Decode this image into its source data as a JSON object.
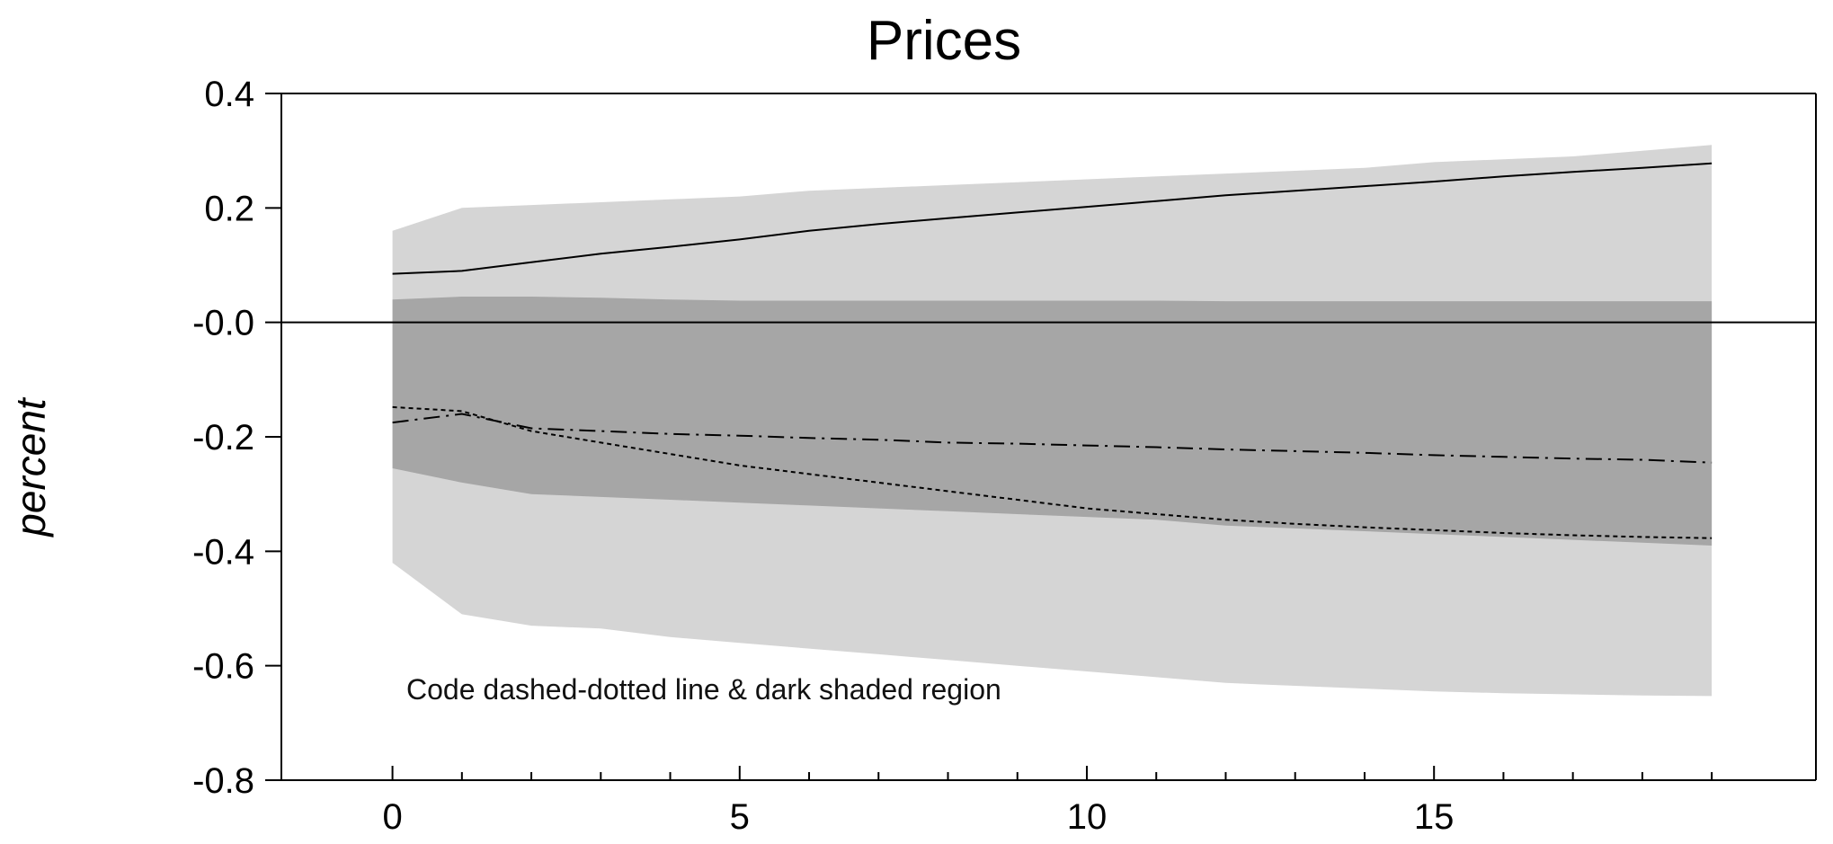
{
  "chart_data": {
    "type": "area",
    "title": "Prices",
    "xlabel": "",
    "ylabel": "percent",
    "xlim": [
      -1.6,
      20.5
    ],
    "ylim": [
      -0.8,
      0.4
    ],
    "x_ticks": [
      0,
      5,
      10,
      15
    ],
    "x_tick_labels": [
      "0",
      "5",
      "10",
      "15"
    ],
    "x_minor_ticks": [
      1,
      2,
      3,
      4,
      6,
      7,
      8,
      9,
      11,
      12,
      13,
      14,
      16,
      17,
      18,
      19
    ],
    "y_ticks": [
      0.4,
      0.2,
      0.0,
      -0.2,
      -0.4,
      -0.6,
      -0.8
    ],
    "y_tick_labels": [
      "0.4",
      "0.2",
      "-0.0",
      "-0.2",
      "-0.4",
      "-0.6",
      "-0.8"
    ],
    "zero_line": true,
    "annotation": "Code dashed-dotted line & dark shaded region",
    "x": [
      0,
      1,
      2,
      3,
      4,
      5,
      6,
      7,
      8,
      9,
      10,
      11,
      12,
      13,
      14,
      15,
      16,
      17,
      18,
      19
    ],
    "bands": [
      {
        "shade": "light",
        "color": "#d5d5d5",
        "lower": [
          -0.42,
          -0.51,
          -0.53,
          -0.535,
          -0.55,
          -0.56,
          -0.57,
          -0.58,
          -0.59,
          -0.6,
          -0.61,
          -0.62,
          -0.63,
          -0.635,
          -0.64,
          -0.645,
          -0.648,
          -0.65,
          -0.652,
          -0.653
        ],
        "upper": [
          0.16,
          0.2,
          0.205,
          0.21,
          0.215,
          0.22,
          0.23,
          0.235,
          0.24,
          0.245,
          0.25,
          0.255,
          0.26,
          0.265,
          0.27,
          0.28,
          0.285,
          0.29,
          0.3,
          0.31
        ]
      },
      {
        "shade": "dark",
        "color": "#a6a6a6",
        "lower": [
          -0.255,
          -0.28,
          -0.3,
          -0.305,
          -0.31,
          -0.315,
          -0.32,
          -0.325,
          -0.33,
          -0.335,
          -0.34,
          -0.345,
          -0.355,
          -0.36,
          -0.365,
          -0.37,
          -0.375,
          -0.38,
          -0.385,
          -0.39
        ],
        "upper": [
          0.04,
          0.045,
          0.045,
          0.043,
          0.04,
          0.038,
          0.038,
          0.038,
          0.038,
          0.038,
          0.038,
          0.038,
          0.037,
          0.037,
          0.037,
          0.037,
          0.037,
          0.037,
          0.037,
          0.037
        ]
      }
    ],
    "series": [
      {
        "style": "solid",
        "values": [
          0.085,
          0.09,
          0.105,
          0.12,
          0.132,
          0.145,
          0.16,
          0.172,
          0.182,
          0.192,
          0.202,
          0.212,
          0.222,
          0.23,
          0.238,
          0.246,
          0.255,
          0.263,
          0.27,
          0.278
        ]
      },
      {
        "style": "dashdot",
        "values": [
          -0.175,
          -0.16,
          -0.185,
          -0.19,
          -0.195,
          -0.198,
          -0.202,
          -0.205,
          -0.21,
          -0.212,
          -0.215,
          -0.218,
          -0.222,
          -0.225,
          -0.228,
          -0.232,
          -0.235,
          -0.238,
          -0.24,
          -0.245
        ]
      },
      {
        "style": "dotted",
        "values": [
          -0.148,
          -0.155,
          -0.19,
          -0.21,
          -0.23,
          -0.25,
          -0.265,
          -0.28,
          -0.295,
          -0.31,
          -0.325,
          -0.335,
          -0.345,
          -0.352,
          -0.358,
          -0.363,
          -0.368,
          -0.372,
          -0.375,
          -0.377
        ]
      }
    ]
  }
}
